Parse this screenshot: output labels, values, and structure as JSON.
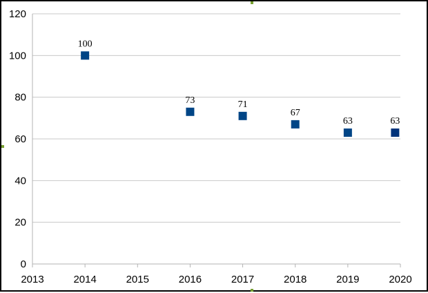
{
  "chart_data": {
    "type": "scatter",
    "title": "",
    "xlabel": "",
    "ylabel": "",
    "xlim": [
      2013,
      2020
    ],
    "ylim": [
      0,
      120
    ],
    "x_ticks": [
      "2013",
      "2014",
      "2015",
      "2016",
      "2017",
      "2018",
      "2019",
      "2020"
    ],
    "y_ticks": [
      "0",
      "20",
      "40",
      "60",
      "80",
      "100",
      "120"
    ],
    "grid": true,
    "legend": "none",
    "marker": "square",
    "series": [
      {
        "color": "#004586",
        "points": [
          {
            "x": 2014,
            "y": 100,
            "label": "100"
          },
          {
            "x": 2016,
            "y": 73,
            "label": "73"
          },
          {
            "x": 2017,
            "y": 71,
            "label": "71"
          },
          {
            "x": 2018,
            "y": 67,
            "label": "67"
          },
          {
            "x": 2019,
            "y": 63,
            "label": "63"
          },
          {
            "x": 2019.9,
            "y": 63,
            "label": "63"
          }
        ]
      }
    ],
    "colors": {
      "grid": "#c8c8c8",
      "axis": "#b3b3b3",
      "marker": "#004586",
      "last_marker": "#00337a"
    }
  }
}
